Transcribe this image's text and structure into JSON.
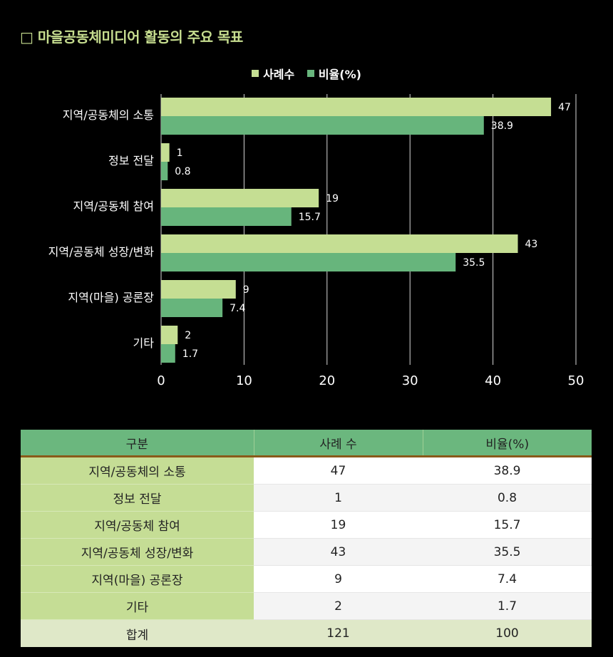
{
  "title": "□ 마을공동체미디어 활동의 주요 목표",
  "chart_data": {
    "type": "bar",
    "orientation": "horizontal",
    "categories": [
      "지역/공동체의 소통",
      "정보 전달",
      "지역/공동체 참여",
      "지역/공동체 성장/변화",
      "지역(마을) 공론장",
      "기타"
    ],
    "series": [
      {
        "name": "사례수",
        "values": [
          47,
          1,
          19,
          43,
          9,
          2
        ],
        "color": "#c5de93"
      },
      {
        "name": "비율(%)",
        "values": [
          38.9,
          0.8,
          15.7,
          35.5,
          7.4,
          1.7
        ],
        "color": "#67b57c"
      }
    ],
    "xlim": [
      0,
      50
    ],
    "xticks": [
      0,
      10,
      20,
      30,
      40,
      50
    ],
    "grid": true,
    "legend": "top-center"
  },
  "table": {
    "headers": [
      "구분",
      "사례 수",
      "비율(%)"
    ],
    "rows": [
      [
        "지역/공동체의 소통",
        "47",
        "38.9"
      ],
      [
        "정보 전달",
        "1",
        "0.8"
      ],
      [
        "지역/공동체 참여",
        "19",
        "15.7"
      ],
      [
        "지역/공동체 성장/변화",
        "43",
        "35.5"
      ],
      [
        "지역(마을) 공론장",
        "9",
        "7.4"
      ],
      [
        "기타",
        "2",
        "1.7"
      ]
    ],
    "total": [
      "합계",
      "121",
      "100"
    ]
  }
}
